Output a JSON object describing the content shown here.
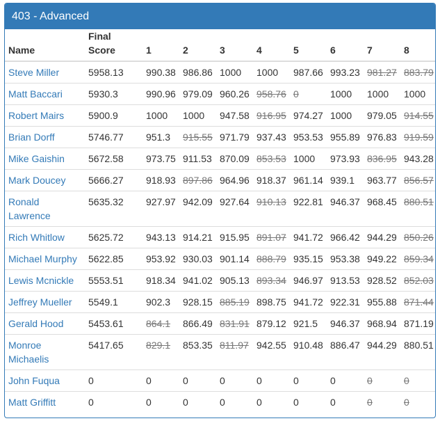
{
  "panel": {
    "title": "403 - Advanced"
  },
  "table": {
    "headers": {
      "name": "Name",
      "final_line1": "Final",
      "final_line2": "Score",
      "rounds": [
        "1",
        "2",
        "3",
        "4",
        "5",
        "6",
        "7",
        "8"
      ]
    },
    "rows": [
      {
        "name": "Steve Miller",
        "final": "5958.13",
        "scores": [
          "990.38",
          "986.86",
          "1000",
          "1000",
          "987.66",
          "993.23",
          "981.27",
          "883.79"
        ],
        "dropped": [
          false,
          false,
          false,
          false,
          false,
          false,
          true,
          true
        ]
      },
      {
        "name": "Matt Baccari",
        "final": "5930.3",
        "scores": [
          "990.96",
          "979.09",
          "960.26",
          "958.76",
          "0",
          "1000",
          "1000",
          "1000"
        ],
        "dropped": [
          false,
          false,
          false,
          true,
          true,
          false,
          false,
          false
        ]
      },
      {
        "name": "Robert Mairs",
        "final": "5900.9",
        "scores": [
          "1000",
          "1000",
          "947.58",
          "916.95",
          "974.27",
          "1000",
          "979.05",
          "914.55"
        ],
        "dropped": [
          false,
          false,
          false,
          true,
          false,
          false,
          false,
          true
        ]
      },
      {
        "name": "Brian Dorff",
        "final": "5746.77",
        "scores": [
          "951.3",
          "915.55",
          "971.79",
          "937.43",
          "953.53",
          "955.89",
          "976.83",
          "919.59"
        ],
        "dropped": [
          false,
          true,
          false,
          false,
          false,
          false,
          false,
          true
        ]
      },
      {
        "name": "Mike Gaishin",
        "final": "5672.58",
        "scores": [
          "973.75",
          "911.53",
          "870.09",
          "853.53",
          "1000",
          "973.93",
          "836.95",
          "943.28"
        ],
        "dropped": [
          false,
          false,
          false,
          true,
          false,
          false,
          true,
          false
        ]
      },
      {
        "name": "Mark Doucey",
        "final": "5666.27",
        "scores": [
          "918.93",
          "897.86",
          "964.96",
          "918.37",
          "961.14",
          "939.1",
          "963.77",
          "856.57"
        ],
        "dropped": [
          false,
          true,
          false,
          false,
          false,
          false,
          false,
          true
        ]
      },
      {
        "name": "Ronald Lawrence",
        "final": "5635.32",
        "scores": [
          "927.97",
          "942.09",
          "927.64",
          "910.13",
          "922.81",
          "946.37",
          "968.45",
          "880.51"
        ],
        "dropped": [
          false,
          false,
          false,
          true,
          false,
          false,
          false,
          true
        ]
      },
      {
        "name": "Rich Whitlow",
        "final": "5625.72",
        "scores": [
          "943.13",
          "914.21",
          "915.95",
          "891.07",
          "941.72",
          "966.42",
          "944.29",
          "850.26"
        ],
        "dropped": [
          false,
          false,
          false,
          true,
          false,
          false,
          false,
          true
        ]
      },
      {
        "name": "Michael Murphy",
        "final": "5622.85",
        "scores": [
          "953.92",
          "930.03",
          "901.14",
          "888.79",
          "935.15",
          "953.38",
          "949.22",
          "859.34"
        ],
        "dropped": [
          false,
          false,
          false,
          true,
          false,
          false,
          false,
          true
        ]
      },
      {
        "name": "Lewis Mcnickle",
        "final": "5553.51",
        "scores": [
          "918.34",
          "941.02",
          "905.13",
          "893.34",
          "946.97",
          "913.53",
          "928.52",
          "852.03"
        ],
        "dropped": [
          false,
          false,
          false,
          true,
          false,
          false,
          false,
          true
        ]
      },
      {
        "name": "Jeffrey Mueller",
        "final": "5549.1",
        "scores": [
          "902.3",
          "928.15",
          "885.19",
          "898.75",
          "941.72",
          "922.31",
          "955.88",
          "871.44"
        ],
        "dropped": [
          false,
          false,
          true,
          false,
          false,
          false,
          false,
          true
        ]
      },
      {
        "name": "Gerald Hood",
        "final": "5453.61",
        "scores": [
          "864.1",
          "866.49",
          "831.91",
          "879.12",
          "921.5",
          "946.37",
          "968.94",
          "871.19"
        ],
        "dropped": [
          true,
          false,
          true,
          false,
          false,
          false,
          false,
          false
        ]
      },
      {
        "name": "Monroe Michaelis",
        "final": "5417.65",
        "scores": [
          "829.1",
          "853.35",
          "811.97",
          "942.55",
          "910.48",
          "886.47",
          "944.29",
          "880.51"
        ],
        "dropped": [
          true,
          false,
          true,
          false,
          false,
          false,
          false,
          false
        ]
      },
      {
        "name": "John Fuqua",
        "final": "0",
        "scores": [
          "0",
          "0",
          "0",
          "0",
          "0",
          "0",
          "0",
          "0"
        ],
        "dropped": [
          false,
          false,
          false,
          false,
          false,
          false,
          true,
          true
        ]
      },
      {
        "name": "Matt Griffitt",
        "final": "0",
        "scores": [
          "0",
          "0",
          "0",
          "0",
          "0",
          "0",
          "0",
          "0"
        ],
        "dropped": [
          false,
          false,
          false,
          false,
          false,
          false,
          true,
          true
        ]
      }
    ]
  }
}
